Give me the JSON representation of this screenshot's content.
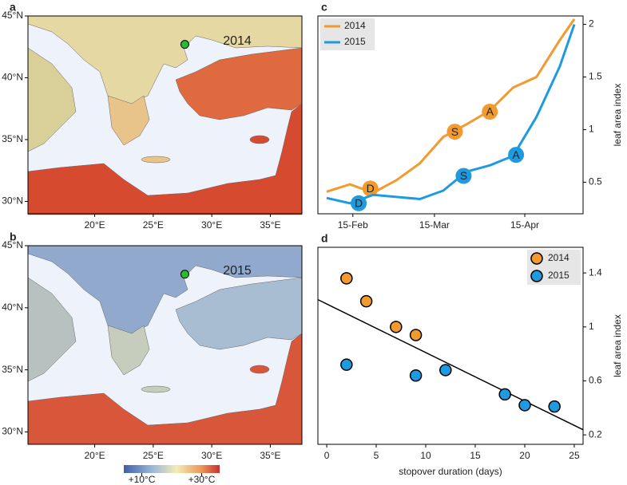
{
  "chart_data": [
    {
      "type": "map",
      "panel": "a",
      "label": "2014",
      "xlim": [
        14.3,
        37.7
      ],
      "ylim": [
        29,
        45
      ],
      "xticks": [
        {
          "value": 20,
          "label": "20°E"
        },
        {
          "value": 25,
          "label": "25°E"
        },
        {
          "value": 30,
          "label": "30°E"
        },
        {
          "value": 35,
          "label": "35°E"
        }
      ],
      "yticks": [
        {
          "value": 30,
          "label": "30°N"
        },
        {
          "value": 35,
          "label": "35°N"
        },
        {
          "value": 40,
          "label": "40°N"
        },
        {
          "value": 45,
          "label": "45°N"
        }
      ],
      "site": {
        "lon": 27.7,
        "lat": 42.7,
        "color": "#22c02a"
      }
    },
    {
      "type": "map",
      "panel": "b",
      "label": "2015",
      "xlim": [
        14.3,
        37.7
      ],
      "ylim": [
        29,
        45
      ],
      "xticks": [
        {
          "value": 20,
          "label": "20°E"
        },
        {
          "value": 25,
          "label": "25°E"
        },
        {
          "value": 30,
          "label": "30°E"
        },
        {
          "value": 35,
          "label": "35°E"
        }
      ],
      "yticks": [
        {
          "value": 30,
          "label": "30°N"
        },
        {
          "value": 35,
          "label": "35°N"
        },
        {
          "value": 40,
          "label": "40°N"
        },
        {
          "value": 45,
          "label": "45°N"
        }
      ],
      "site": {
        "lon": 27.7,
        "lat": 42.7,
        "color": "#22c02a"
      },
      "colorbar_lim": [
        4,
        36
      ],
      "colorbar_ticks": [
        {
          "value": 10,
          "label": "+10°C"
        },
        {
          "value": 30,
          "label": "+30°C"
        }
      ]
    },
    {
      "type": "line",
      "panel": "c",
      "y_label": "leaf area index",
      "x": [
        37,
        45,
        53,
        61,
        69,
        77,
        85,
        93,
        101,
        109,
        117,
        122
      ],
      "xlim": [
        34,
        125
      ],
      "ylim": [
        0.2,
        2.08
      ],
      "xticks": [
        {
          "value": 46,
          "label": "15-Feb"
        },
        {
          "value": 74,
          "label": "15-Mar"
        },
        {
          "value": 105,
          "label": "15-Apr"
        }
      ],
      "yticks": [
        0.5,
        1.0,
        1.5,
        2.0
      ],
      "series": [
        {
          "name": "2014",
          "color": "#f39a2f",
          "values": [
            0.41,
            0.48,
            0.4,
            0.52,
            0.68,
            0.93,
            1.05,
            1.18,
            1.4,
            1.5,
            1.85,
            2.05
          ],
          "markers": [
            {
              "label": "D",
              "x": 52,
              "y": 0.44
            },
            {
              "label": "S",
              "x": 81,
              "y": 0.98
            },
            {
              "label": "A",
              "x": 93,
              "y": 1.17
            }
          ]
        },
        {
          "name": "2015",
          "color": "#1e9ae0",
          "values": [
            0.35,
            0.3,
            0.38,
            0.36,
            0.34,
            0.42,
            0.6,
            0.66,
            0.75,
            1.12,
            1.6,
            2.0
          ],
          "markers": [
            {
              "label": "D",
              "x": 48,
              "y": 0.3
            },
            {
              "label": "S",
              "x": 84,
              "y": 0.56
            },
            {
              "label": "A",
              "x": 102,
              "y": 0.76
            }
          ]
        }
      ]
    },
    {
      "type": "scatter",
      "panel": "d",
      "x_label": "stopover duration (days)",
      "y_label": "leaf area index",
      "xlim": [
        -0.89,
        25.89
      ],
      "ylim": [
        0.13,
        1.59
      ],
      "xticks": [
        0,
        5,
        10,
        15,
        20,
        25
      ],
      "yticks": [
        0.2,
        0.6,
        1.0,
        1.4
      ],
      "series": [
        {
          "name": "2014",
          "color": "#f39a2f",
          "x": [
            2,
            4,
            7,
            9
          ],
          "values": [
            1.36,
            1.19,
            1.0,
            0.94
          ]
        },
        {
          "name": "2015",
          "color": "#1e9ae0",
          "x": [
            2,
            9,
            12,
            18,
            20,
            23
          ],
          "values": [
            0.72,
            0.64,
            0.68,
            0.5,
            0.42,
            0.41
          ]
        }
      ],
      "fit": {
        "slope": -0.036,
        "intercept": 1.17
      }
    }
  ]
}
